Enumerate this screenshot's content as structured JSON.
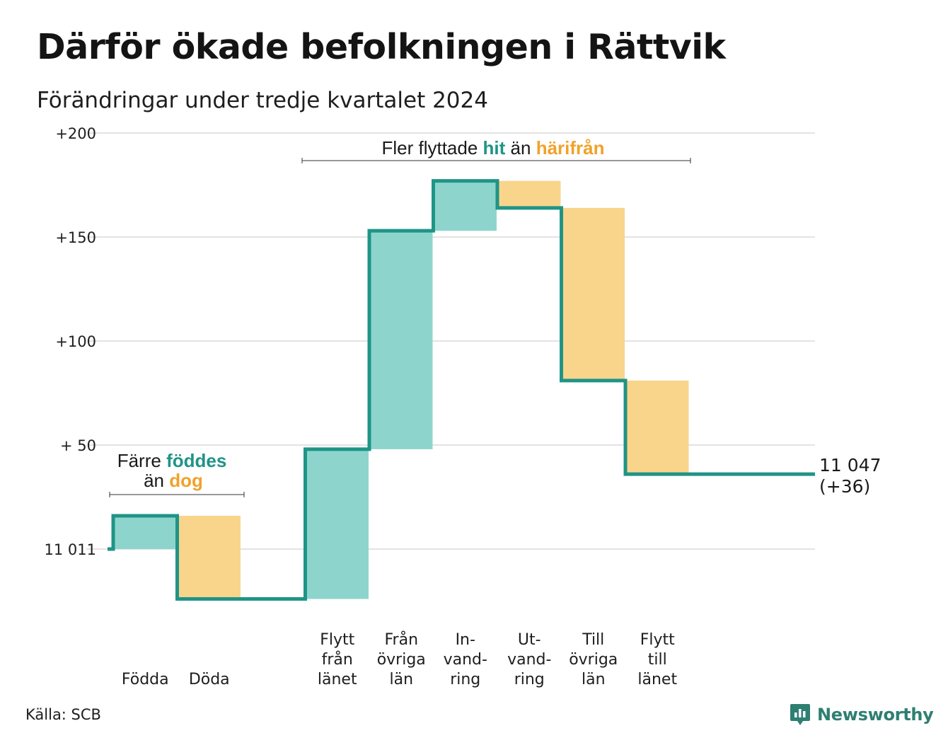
{
  "title": "Därför ökade befolkningen i Rättvik",
  "subtitle": "Förändringar under tredje kvartalet 2024",
  "source": "Källa: SCB",
  "brand": {
    "name": "Newsworthy",
    "icon": "newsworthy-logo-icon",
    "color": "#2e7f72"
  },
  "colors": {
    "increase": "#8dd5cc",
    "decrease": "#f9d48b",
    "line": "#1f9487",
    "grid": "#e3e3e3",
    "label_increase": "#1f9487",
    "label_decrease": "#f0a22a"
  },
  "annotations": {
    "births": {
      "line1_prefix": "Färre",
      "line1_highlight": "föddes",
      "line2_prefix": "än",
      "line2_highlight": "dog"
    },
    "migration": {
      "prefix": "Fler flyttade",
      "highlight_in": "hit",
      "middle": "än",
      "highlight_out": "härifrån"
    }
  },
  "end_label": {
    "value": "11 047",
    "change": "(+36)"
  },
  "chart_data": {
    "type": "waterfall",
    "title": "Därför ökade befolkningen i Rättvik",
    "subtitle": "Förändringar under tredje kvartalet 2024",
    "start_value": 11011,
    "end_value": 11047,
    "net_change": 36,
    "y_ticks": [
      {
        "value": 0,
        "label": "11 011"
      },
      {
        "value": 50,
        "label": "+ 50"
      },
      {
        "value": 100,
        "label": "+100"
      },
      {
        "value": 150,
        "label": "+150"
      },
      {
        "value": 200,
        "label": "+200"
      }
    ],
    "ylim": [
      -24,
      200
    ],
    "grid": true,
    "steps": [
      {
        "label": [
          "Födda"
        ],
        "delta": 16,
        "kind": "increase"
      },
      {
        "label": [
          "Döda"
        ],
        "delta": -40,
        "kind": "decrease"
      },
      {
        "label": [],
        "delta": 0,
        "kind": "gap"
      },
      {
        "label": [
          "Flytt",
          "från",
          "länet"
        ],
        "delta": 72,
        "kind": "increase"
      },
      {
        "label": [
          "Från",
          "övriga",
          "län"
        ],
        "delta": 105,
        "kind": "increase"
      },
      {
        "label": [
          "In-",
          "vand-",
          "ring"
        ],
        "delta": 24,
        "kind": "increase"
      },
      {
        "label": [
          "Ut-",
          "vand-",
          "ring"
        ],
        "delta": -13,
        "kind": "decrease"
      },
      {
        "label": [
          "Till",
          "övriga",
          "län"
        ],
        "delta": -83,
        "kind": "decrease"
      },
      {
        "label": [
          "Flytt",
          "till",
          "länet"
        ],
        "delta": -45,
        "kind": "decrease"
      }
    ]
  }
}
